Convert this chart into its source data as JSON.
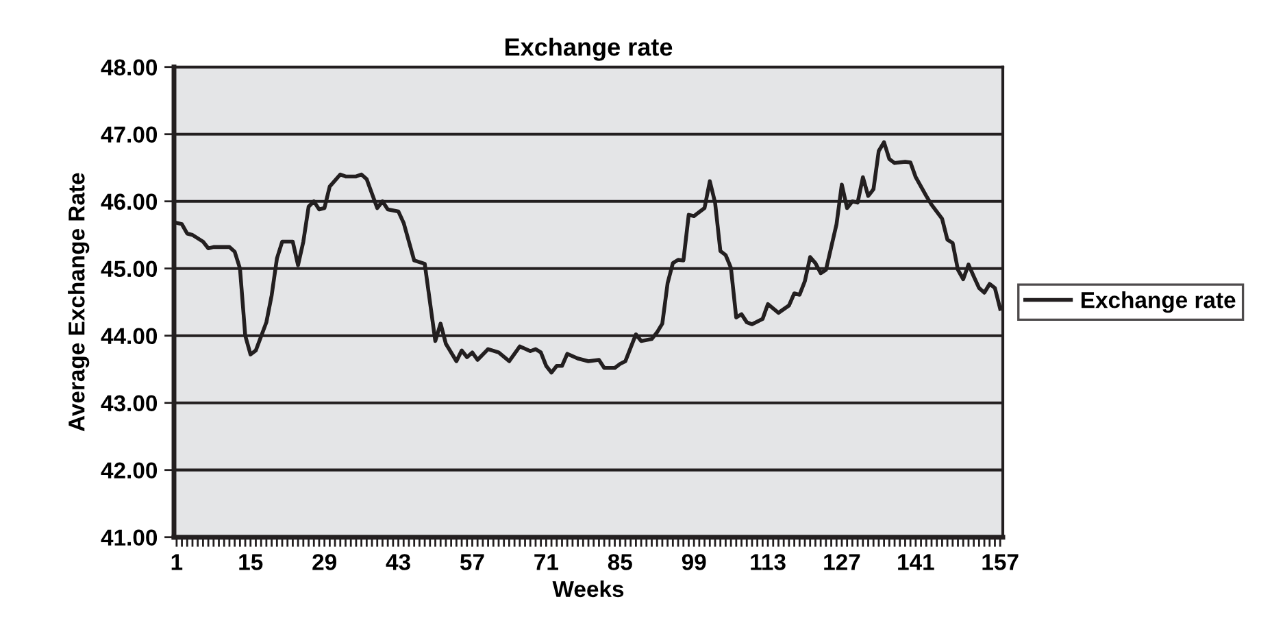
{
  "chart_data": {
    "type": "line",
    "title": "Exchange rate",
    "xlabel": "Weeks",
    "ylabel": "Average Exchange Rate",
    "x": [
      1,
      2,
      3,
      4,
      6,
      7,
      8,
      11,
      12,
      13,
      14,
      15,
      16,
      18,
      19,
      20,
      21,
      23,
      24,
      25,
      26,
      27,
      28,
      29,
      30,
      32,
      33,
      35,
      36,
      37,
      39,
      40,
      41,
      43,
      44,
      45,
      46,
      48,
      50,
      51,
      52,
      54,
      55,
      56,
      57,
      58,
      60,
      62,
      64,
      66,
      68,
      69,
      70,
      71,
      72,
      73,
      74,
      75,
      77,
      79,
      81,
      82,
      84,
      85,
      86,
      87,
      88,
      89,
      91,
      92,
      93,
      94,
      95,
      96,
      97,
      98,
      99,
      101,
      102,
      103,
      104,
      105,
      106,
      107,
      108,
      109,
      110,
      112,
      113,
      115,
      117,
      118,
      119,
      120,
      121,
      122,
      123,
      124,
      125,
      126,
      127,
      128,
      129,
      130,
      131,
      132,
      133,
      134,
      135,
      136,
      137,
      139,
      140,
      141,
      143,
      144,
      146,
      147,
      148,
      149,
      150,
      151,
      152,
      153,
      154,
      155,
      156,
      157
    ],
    "series": [
      {
        "name": "Exchange rate",
        "color": "#231f20",
        "values": [
          45.68,
          45.66,
          45.52,
          45.5,
          45.4,
          45.3,
          45.32,
          45.32,
          45.25,
          45.0,
          44.0,
          43.72,
          43.78,
          44.2,
          44.6,
          45.15,
          45.4,
          45.4,
          45.05,
          45.4,
          45.92,
          46.0,
          45.88,
          45.9,
          46.22,
          46.4,
          46.37,
          46.37,
          46.4,
          46.33,
          45.9,
          46.0,
          45.88,
          45.85,
          45.68,
          45.4,
          45.12,
          45.07,
          43.92,
          44.18,
          43.88,
          43.62,
          43.78,
          43.68,
          43.75,
          43.64,
          43.8,
          43.75,
          43.62,
          43.84,
          43.77,
          43.8,
          43.75,
          43.55,
          43.45,
          43.55,
          43.55,
          43.73,
          43.66,
          43.62,
          43.64,
          43.52,
          43.52,
          43.58,
          43.62,
          43.82,
          44.02,
          43.92,
          43.95,
          44.05,
          44.18,
          44.78,
          45.08,
          45.13,
          45.12,
          45.8,
          45.78,
          45.9,
          46.3,
          45.98,
          45.26,
          45.2,
          45.01,
          44.27,
          44.32,
          44.2,
          44.17,
          44.25,
          44.47,
          44.34,
          44.45,
          44.63,
          44.61,
          44.81,
          45.17,
          45.08,
          44.93,
          44.98,
          45.32,
          45.66,
          46.25,
          45.9,
          46.0,
          45.98,
          46.36,
          46.08,
          46.18,
          46.75,
          46.88,
          46.63,
          46.57,
          46.59,
          46.58,
          46.36,
          46.08,
          45.95,
          45.74,
          45.43,
          45.38,
          44.98,
          44.84,
          45.06,
          44.88,
          44.71,
          44.64,
          44.77,
          44.71,
          44.4
        ]
      }
    ],
    "xlim": [
      0.5,
      157.5
    ],
    "xticks": [
      1,
      15,
      29,
      43,
      57,
      71,
      85,
      99,
      113,
      127,
      141,
      157
    ],
    "ylim": [
      41,
      48
    ],
    "yticks": [
      {
        "value": 41,
        "label": "41.00"
      },
      {
        "value": 42,
        "label": "42.00"
      },
      {
        "value": 43,
        "label": "43.00"
      },
      {
        "value": 44,
        "label": "44.00"
      },
      {
        "value": 45,
        "label": "45.00"
      },
      {
        "value": 46,
        "label": "46.00"
      },
      {
        "value": 47,
        "label": "47.00"
      },
      {
        "value": 48,
        "label": "48.00"
      }
    ],
    "grid": "y",
    "legend": "right",
    "marker": "none",
    "line_style": "solid"
  }
}
